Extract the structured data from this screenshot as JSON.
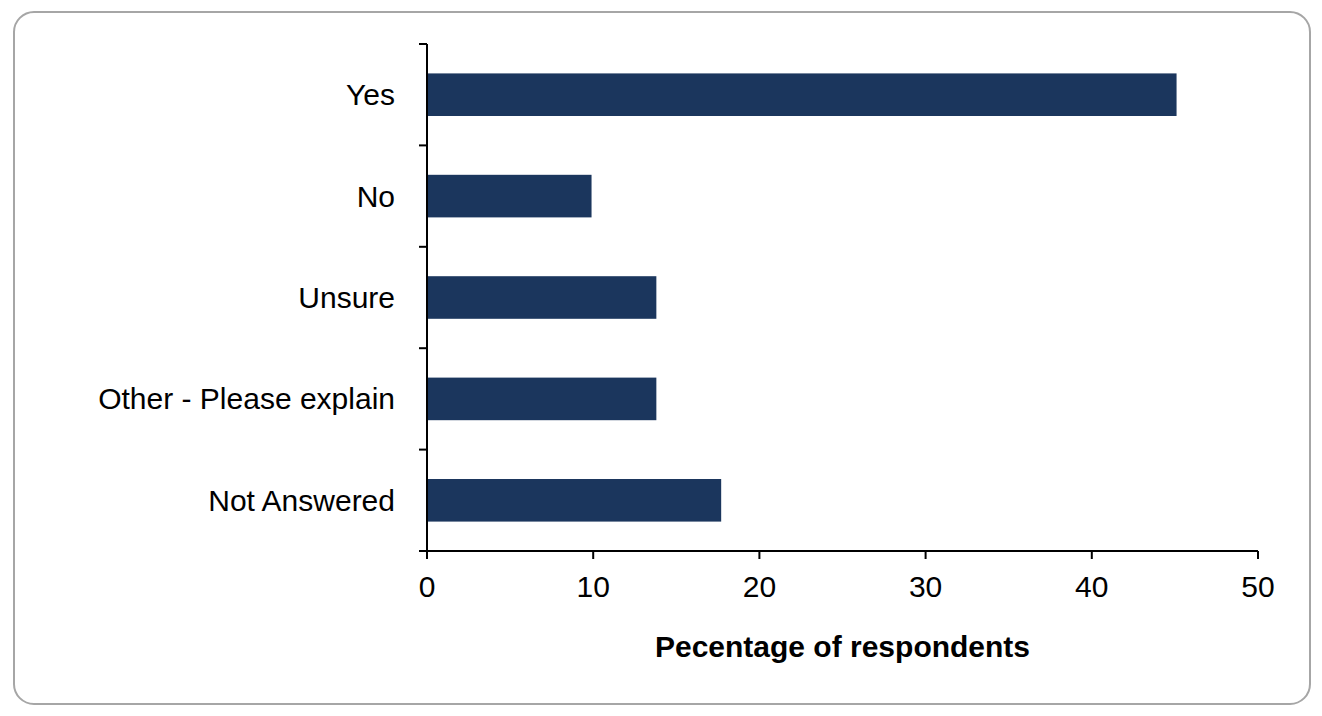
{
  "chart_data": {
    "type": "bar",
    "orientation": "horizontal",
    "categories": [
      "Yes",
      "No",
      "Unsure",
      "Other - Please explain",
      "Not Answered"
    ],
    "values": [
      45.1,
      9.9,
      13.8,
      13.8,
      17.7
    ],
    "color": "#1b365d",
    "x_label": "Pecentage of respondents",
    "xlim": [
      0,
      50
    ],
    "xticks": [
      0,
      10,
      20,
      30,
      40,
      50
    ],
    "grid": false
  }
}
